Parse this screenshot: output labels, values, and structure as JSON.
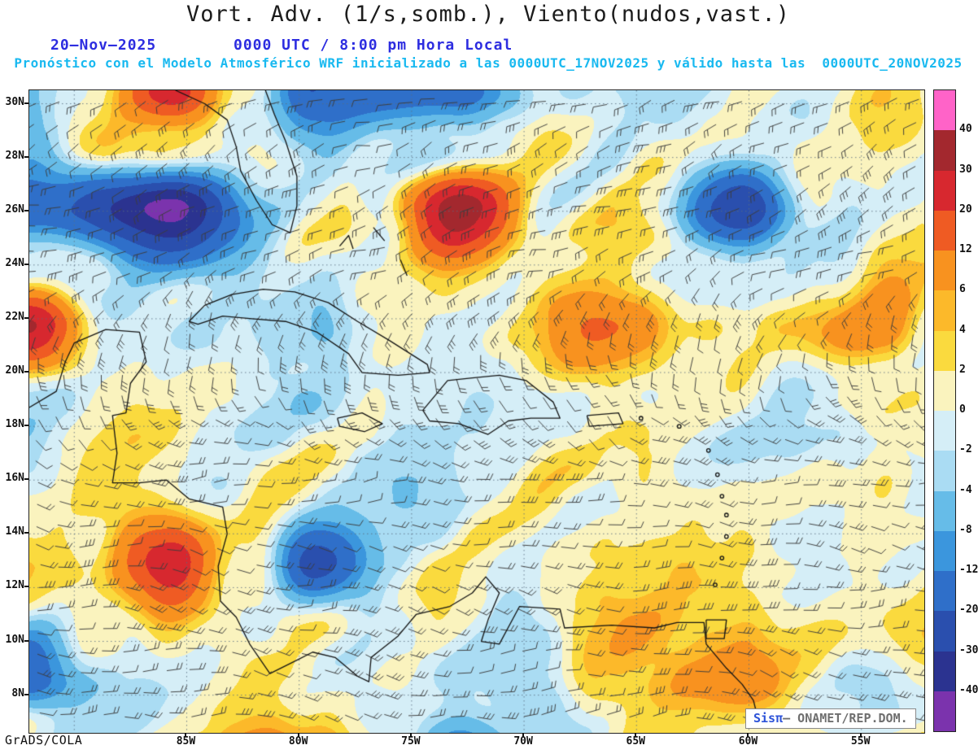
{
  "header": {
    "title": "Vort. Adv. (1/s,somb.), Viento(nudos,vast.)",
    "date": "20–Nov–2025",
    "time": "0000 UTC / 8:00 pm Hora Local",
    "forecast": "Pronóstico con el Modelo Atmosférico WRF inicializado a las 0000UTC_17NOV2025 y válido hasta las  0000UTC_20NOV2025"
  },
  "axes": {
    "lat_labels": [
      "30N",
      "28N",
      "26N",
      "24N",
      "22N",
      "20N",
      "18N",
      "16N",
      "14N",
      "12N",
      "10N",
      "8N"
    ],
    "lon_labels": [
      "85W",
      "80W",
      "75W",
      "70W",
      "65W",
      "60W",
      "55W"
    ]
  },
  "colorbar": {
    "labels": [
      "40",
      "30",
      "20",
      "12",
      "6",
      "4",
      "2",
      "0",
      "-2",
      "-4",
      "-8",
      "-12",
      "-20",
      "-30",
      "-40"
    ],
    "colors_top_to_bottom": [
      "#ff63c8",
      "#a3282e",
      "#d7282f",
      "#ef5b23",
      "#f8921f",
      "#fcb92a",
      "#fada3e",
      "#faf3be",
      "#d5eef7",
      "#aadcf3",
      "#66bce8",
      "#3b96dd",
      "#2f6fc9",
      "#2a4fae",
      "#2b3390",
      "#7b33ad"
    ]
  },
  "credits": {
    "engine": "GrADS/COLA",
    "brand": "Sisπ",
    "source": "– ONAMET/REP.DOM."
  },
  "chart_data": {
    "type": "heatmap",
    "title": "Vort. Adv. (1/s,somb.), Viento(nudos,vast.)",
    "shaded_variable": "Vorticity advection (1/s, shaded)",
    "overlay": "Wind barbs (knots)",
    "model": "WRF",
    "date": "20–Nov–2025",
    "valid_local": "0000 UTC / 8:00 pm Hora Local",
    "init": "0000UTC_17NOV2025",
    "valid": "0000UTC_20NOV2025",
    "levels": [
      -40,
      -30,
      -20,
      -12,
      -8,
      -4,
      -2,
      0,
      2,
      4,
      6,
      12,
      20,
      30,
      40
    ],
    "lat_ticks": [
      "30N",
      "28N",
      "26N",
      "24N",
      "22N",
      "20N",
      "18N",
      "16N",
      "14N",
      "12N",
      "10N",
      "8N"
    ],
    "lon_ticks": [
      "85W",
      "80W",
      "75W",
      "70W",
      "65W",
      "60W",
      "55W"
    ],
    "legend_position": "right",
    "grid": true
  }
}
